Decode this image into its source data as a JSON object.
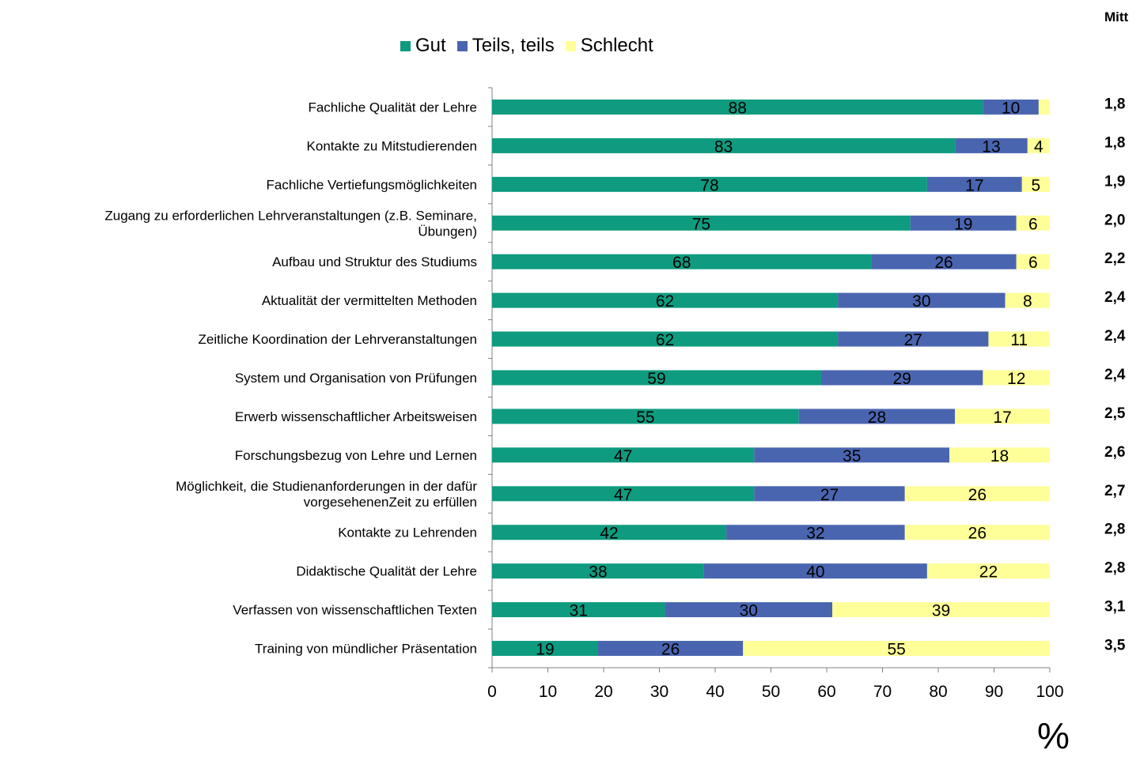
{
  "mittel_header": "Mitt",
  "unit_label": "%",
  "colors": {
    "gut": "#0e9b7f",
    "teils": "#4a65b0",
    "schlecht": "#ffff99"
  },
  "chart_data": {
    "type": "bar",
    "orientation": "horizontal",
    "stacked": true,
    "categories": [
      "Fachliche Qualität der Lehre",
      "Kontakte zu Mitstudierenden",
      "Fachliche Vertiefungsmöglichkeiten",
      "Zugang zu erforderlichen Lehrveranstaltungen (z.B. Seminare, Übungen)",
      "Aufbau und Struktur des Studiums",
      "Aktualität der vermittelten Methoden",
      "Zeitliche Koordination der Lehrveranstaltungen",
      "System und Organisation von Prüfungen",
      "Erwerb wissenschaftlicher Arbeitsweisen",
      "Forschungsbezug von Lehre und Lernen",
      "Möglichkeit, die Studienanforderungen in der dafür vorgesehenenZeit zu erfüllen",
      "Kontakte zu Lehrenden",
      "Didaktische Qualität der Lehre",
      "Verfassen von wissenschaftlichen Texten",
      "Training von mündlicher Präsentation"
    ],
    "category_lines": [
      [
        "Fachliche Qualität der Lehre"
      ],
      [
        "Kontakte zu Mitstudierenden"
      ],
      [
        "Fachliche Vertiefungsmöglichkeiten"
      ],
      [
        "Zugang zu erforderlichen Lehrveranstaltungen (z.B. Seminare,",
        "Übungen)"
      ],
      [
        "Aufbau und Struktur des Studiums"
      ],
      [
        "Aktualität der vermittelten Methoden"
      ],
      [
        "Zeitliche Koordination der Lehrveranstaltungen"
      ],
      [
        "System und Organisation von Prüfungen"
      ],
      [
        "Erwerb wissenschaftlicher Arbeitsweisen"
      ],
      [
        "Forschungsbezug von Lehre und Lernen"
      ],
      [
        "Möglichkeit, die Studienanforderungen in der dafür",
        "vorgesehenenZeit zu erfüllen"
      ],
      [
        "Kontakte zu Lehrenden"
      ],
      [
        "Didaktische Qualität der Lehre"
      ],
      [
        "Verfassen von wissenschaftlichen Texten"
      ],
      [
        "Training von mündlicher Präsentation"
      ]
    ],
    "series": [
      {
        "name": "Gut",
        "values": [
          88,
          83,
          78,
          75,
          68,
          62,
          62,
          59,
          55,
          47,
          47,
          42,
          38,
          31,
          19
        ]
      },
      {
        "name": "Teils, teils",
        "values": [
          10,
          13,
          17,
          19,
          26,
          30,
          27,
          29,
          28,
          35,
          27,
          32,
          40,
          30,
          26
        ]
      },
      {
        "name": "Schlecht",
        "values": [
          2,
          4,
          5,
          6,
          6,
          8,
          11,
          12,
          17,
          18,
          26,
          26,
          22,
          39,
          55
        ]
      }
    ],
    "data_labels": [
      [
        "88",
        "10",
        ""
      ],
      [
        "83",
        "13",
        "4"
      ],
      [
        "78",
        "17",
        "5"
      ],
      [
        "75",
        "19",
        "6"
      ],
      [
        "68",
        "26",
        "6"
      ],
      [
        "62",
        "30",
        "8"
      ],
      [
        "62",
        "27",
        "11"
      ],
      [
        "59",
        "29",
        "12"
      ],
      [
        "55",
        "28",
        "17"
      ],
      [
        "47",
        "35",
        "18"
      ],
      [
        "47",
        "27",
        "26"
      ],
      [
        "42",
        "32",
        "26"
      ],
      [
        "38",
        "40",
        "22"
      ],
      [
        "31",
        "30",
        "39"
      ],
      [
        "19",
        "26",
        "55"
      ]
    ],
    "mittelwert": [
      "1,8",
      "1,8",
      "1,9",
      "2,0",
      "2,2",
      "2,4",
      "2,4",
      "2,4",
      "2,5",
      "2,6",
      "2,7",
      "2,8",
      "2,8",
      "3,1",
      "3,5"
    ],
    "xlim": [
      0,
      100
    ],
    "xticks": [
      0,
      10,
      20,
      30,
      40,
      50,
      60,
      70,
      80,
      90,
      100
    ],
    "legend_position": "top",
    "grid": false
  }
}
